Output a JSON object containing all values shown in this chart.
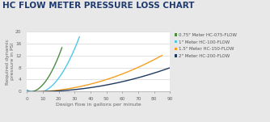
{
  "title": "HC FLOW METER PRESSURE LOSS CHART",
  "xlabel": "Design flow in gallons per minute",
  "ylabel": "Required dynamic\npressure in PSI",
  "xlim": [
    0,
    90
  ],
  "ylim": [
    0,
    20
  ],
  "xticks": [
    0,
    10,
    20,
    30,
    40,
    50,
    60,
    70,
    80,
    90
  ],
  "yticks": [
    0,
    4,
    8,
    12,
    16,
    20
  ],
  "background_color": "#e8e8e8",
  "series": [
    {
      "label": "0.75\" Meter HC-075-FLOW",
      "color": "#4d8c3f",
      "x": [
        0,
        5,
        10,
        15,
        20,
        22
      ],
      "y": [
        0,
        0.4,
        2.0,
        6.0,
        13.0,
        14.0
      ]
    },
    {
      "label": "1\" Meter HC-100-FLOW",
      "color": "#4fc8e8",
      "x": [
        0,
        5,
        10,
        15,
        20,
        25,
        30,
        33
      ],
      "y": [
        0,
        0.1,
        0.5,
        1.5,
        4.0,
        8.5,
        14.5,
        18.5
      ]
    },
    {
      "label": "1.5\" Meter HC-150-FLOW",
      "color": "#f5a020",
      "x": [
        0,
        10,
        20,
        30,
        40,
        50,
        60,
        70,
        80,
        85
      ],
      "y": [
        0,
        0.1,
        0.4,
        1.0,
        2.2,
        4.0,
        6.2,
        8.5,
        11.0,
        11.5
      ]
    },
    {
      "label": "2\" Meter HC-200-FLOW",
      "color": "#1e3a5f",
      "x": [
        0,
        10,
        20,
        30,
        40,
        50,
        60,
        70,
        80,
        90
      ],
      "y": [
        0,
        0.05,
        0.2,
        0.6,
        1.2,
        2.1,
        3.3,
        4.8,
        6.3,
        7.8
      ]
    }
  ],
  "title_color": "#1e3a6e",
  "title_fontsize": 7.5,
  "axis_label_fontsize": 4.5,
  "tick_fontsize": 4.2,
  "legend_fontsize": 4.0,
  "grid_color": "#cccccc",
  "plot_bg": "#ffffff"
}
